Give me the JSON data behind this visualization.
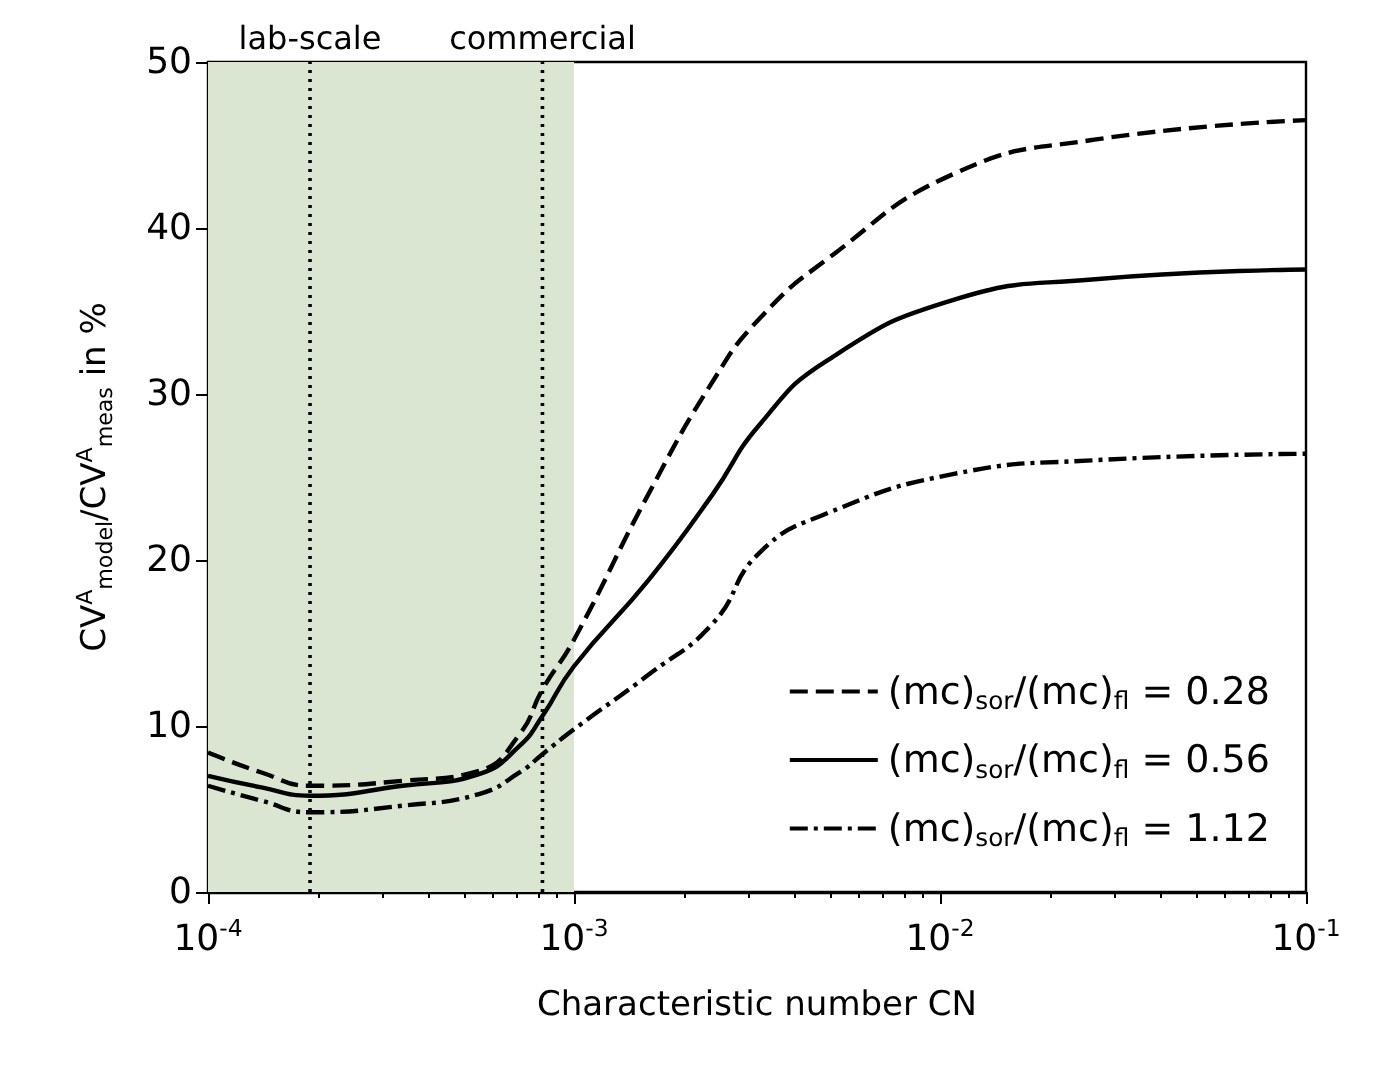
{
  "chart_data": {
    "type": "line",
    "xlabel": "Characteristic number CN",
    "ylabel": "CV$^{A}$$_{model}$/CV$^{A}$$_{meas}$ in %",
    "log": "x",
    "x": [
      0.0001,
      0.00014,
      0.00019,
      0.00034,
      0.00055,
      0.00071,
      0.00082,
      0.001,
      0.0016,
      0.0024,
      0.0032,
      0.0049,
      0.011,
      0.026,
      0.1
    ],
    "series": [
      {
        "name": "(mc)$_{sor}$/(mc)$_{fl}$ = 0.28",
        "color": "#000000",
        "line_style": "dashed",
        "values": [
          8.4,
          7.2,
          6.4,
          6.7,
          7.3,
          9.5,
          12.2,
          15.2,
          24,
          30.8,
          34.5,
          38.1,
          43.3,
          45.3,
          46.5
        ]
      },
      {
        "name": "(mc)$_{sor}$/(mc)$_{fl}$ = 0.56",
        "color": "#000000",
        "line_style": "solid",
        "values": [
          7.0,
          6.3,
          5.8,
          6.4,
          7.1,
          8.8,
          10.6,
          13.6,
          18.8,
          24,
          28.1,
          32,
          35.7,
          36.9,
          37.5
        ]
      },
      {
        "name": "(mc)$_{sor}$/(mc)$_{fl}$ = 1.12",
        "color": "#000000",
        "line_style": "dashdot",
        "values": [
          6.4,
          5.5,
          4.8,
          5.2,
          5.9,
          7.2,
          8.3,
          9.8,
          13.1,
          16.2,
          20.4,
          22.8,
          25.2,
          26,
          26.4
        ]
      }
    ],
    "xlim": [
      0.0001,
      0.1
    ],
    "xticks": [
      {
        "value": 0.0001,
        "label": "10$^{-4}$"
      },
      {
        "value": 0.001,
        "label": "10$^{-3}$"
      },
      {
        "value": 0.01,
        "label": "10$^{-2}$"
      },
      {
        "value": 0.1,
        "label": "10$^{-1}$"
      }
    ],
    "ylim": [
      0,
      50
    ],
    "yticks": [
      0,
      10,
      20,
      30,
      40,
      50
    ],
    "bands": [
      {
        "axis": "x",
        "from": 0.0001,
        "to": 0.001,
        "color": "#dae6d1"
      }
    ],
    "ref_lines": [
      {
        "axis": "x",
        "value": 0.00019,
        "label": "lab-scale",
        "color": "#000000",
        "line_style": "dotted"
      },
      {
        "axis": "x",
        "value": 0.00082,
        "label": "commercial",
        "color": "#000000",
        "line_style": "dotted"
      }
    ],
    "grid": false,
    "legend": "bottom right",
    "marker": "none"
  }
}
